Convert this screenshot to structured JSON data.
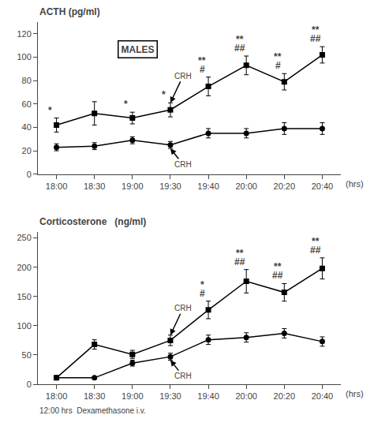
{
  "chart_data": [
    {
      "type": "line",
      "title": "ACTH (pg/ml)",
      "xlabel": "(hrs)",
      "note": "MALES",
      "categories": [
        "18:00",
        "18:30",
        "19:00",
        "19:30",
        "19:40",
        "20:00",
        "20:20",
        "20:40"
      ],
      "series": [
        {
          "values": [
            42,
            52,
            48,
            55,
            75,
            93,
            79,
            102
          ],
          "error": [
            6,
            10,
            5,
            6,
            8,
            8,
            7,
            7
          ],
          "marker": "square",
          "color": "black"
        },
        {
          "values": [
            23,
            24,
            29,
            25,
            35,
            35,
            39,
            39
          ],
          "error": [
            3,
            3,
            3,
            3,
            4,
            4,
            5,
            5
          ],
          "marker": "circle",
          "color": "black"
        }
      ],
      "ylim": [
        0,
        130
      ],
      "yticks": [
        0,
        20,
        40,
        60,
        80,
        100,
        120
      ],
      "grid": false,
      "annotations": [
        {
          "category": "18:00",
          "text": "*"
        },
        {
          "category": "19:00",
          "text": "*"
        },
        {
          "category": "19:30",
          "text": "*"
        },
        {
          "category": "19:40",
          "text": "#"
        },
        {
          "category": "19:40",
          "text": "**"
        },
        {
          "category": "20:00",
          "text": "##"
        },
        {
          "category": "20:00",
          "text": "**"
        },
        {
          "category": "20:20",
          "text": "#"
        },
        {
          "category": "20:20",
          "text": "**"
        },
        {
          "category": "20:40",
          "text": "##"
        },
        {
          "category": "20:40",
          "text": "**"
        }
      ],
      "events": [
        {
          "category": "19:30",
          "text": "CRH",
          "series": 0
        },
        {
          "category": "19:30",
          "text": "CRH",
          "series": 1
        }
      ]
    },
    {
      "type": "line",
      "title": "Corticosterone   (ng/ml)",
      "xlabel": "(hrs)",
      "footnote": "12:00 hrs  Dexamethasone i.v.",
      "categories": [
        "18:00",
        "18:30",
        "19:00",
        "19:30",
        "19:40",
        "20:00",
        "20:20",
        "20:40"
      ],
      "series": [
        {
          "values": [
            11,
            68,
            51,
            75,
            127,
            176,
            157,
            198
          ],
          "error": [
            3,
            8,
            7,
            9,
            15,
            20,
            15,
            18
          ],
          "marker": "square",
          "color": "black"
        },
        {
          "values": [
            11,
            11,
            36,
            47,
            76,
            80,
            87,
            73
          ],
          "error": [
            2,
            2,
            5,
            6,
            8,
            8,
            8,
            8
          ],
          "marker": "circle",
          "color": "black"
        }
      ],
      "ylim": [
        0,
        260
      ],
      "yticks": [
        0,
        50,
        100,
        150,
        200,
        250
      ],
      "grid": false,
      "annotations": [
        {
          "category": "19:40",
          "text": "#"
        },
        {
          "category": "19:40",
          "text": "*"
        },
        {
          "category": "20:00",
          "text": "##"
        },
        {
          "category": "20:00",
          "text": "**"
        },
        {
          "category": "20:20",
          "text": "##"
        },
        {
          "category": "20:20",
          "text": "**"
        },
        {
          "category": "20:40",
          "text": "##"
        },
        {
          "category": "20:40",
          "text": "**"
        }
      ],
      "events": [
        {
          "category": "19:30",
          "text": "CRH",
          "series": 0
        },
        {
          "category": "19:30",
          "text": "CRH",
          "series": 1
        }
      ]
    }
  ]
}
